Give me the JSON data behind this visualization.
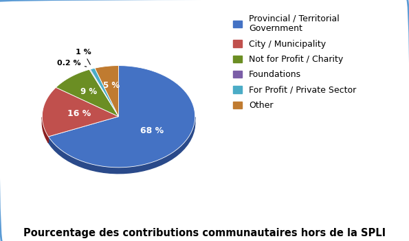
{
  "labels": [
    "Provincial / Territorial\nGovernment",
    "City / Municipality",
    "Not for Profit / Charity",
    "Foundations",
    "For Profit / Private Sector",
    "Other"
  ],
  "legend_labels": [
    "Provincial / Territorial\nGovernment",
    "City / Municipality",
    "Not for Profit / Charity",
    "Foundations",
    "For Profit / Private Sector",
    "Other"
  ],
  "values": [
    68,
    16,
    9,
    0.2,
    1,
    5
  ],
  "colors": [
    "#4472C4",
    "#C0504D",
    "#6B8E23",
    "#7B5EA7",
    "#4BACC6",
    "#C07B30"
  ],
  "dark_colors": [
    "#2A4A8A",
    "#8B2020",
    "#3D5210",
    "#4A2A6A",
    "#1A7A96",
    "#8B4A10"
  ],
  "pct_labels": [
    "68 %",
    "16 %",
    "9 %",
    "0.2 %",
    "1 %",
    "5 %"
  ],
  "title": "Pourcentage des contributions communautaires hors de la SPLI",
  "title_fontsize": 10.5,
  "legend_fontsize": 9,
  "background_color": "#FFFFFF",
  "border_color": "#5B9BD5",
  "startangle": 90,
  "depth": 0.12
}
